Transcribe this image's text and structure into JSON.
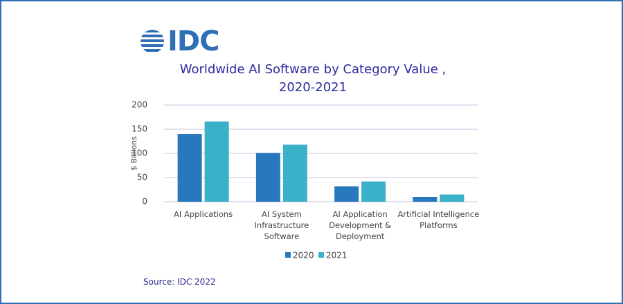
{
  "logo": "IDC",
  "chart_data": {
    "type": "bar",
    "title": "Worldwide AI Software by Category Value , 2020-2021",
    "y_label": "$ Billions",
    "categories": [
      "AI Applications",
      "AI System Infrastructure Software",
      "AI Application Development & Deployment",
      "Artificial Intelligence Platforms"
    ],
    "series": [
      {
        "name": "2020",
        "color": "#2878bd",
        "values": [
          140,
          101,
          32,
          10
        ]
      },
      {
        "name": "2021",
        "color": "#3bb0c9",
        "values": [
          166,
          118,
          42,
          15
        ]
      }
    ],
    "ylim": [
      0,
      200
    ],
    "yticks": [
      0,
      50,
      100,
      150,
      200
    ],
    "grid": true,
    "source": "Source: IDC 2022"
  }
}
